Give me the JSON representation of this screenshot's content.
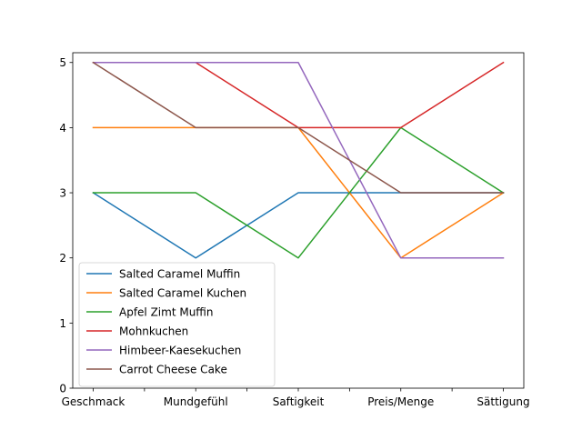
{
  "chart_data": {
    "type": "line",
    "title": "",
    "xlabel": "",
    "ylabel": "",
    "categories": [
      "Geschmack",
      "Mundgefühl",
      "Saftigkeit",
      "Preis/Menge",
      "Sättigung"
    ],
    "ylim": [
      0,
      5.15
    ],
    "yticks": [
      0,
      1,
      2,
      3,
      4,
      5
    ],
    "grid": false,
    "legend_position": "lower-left",
    "series": [
      {
        "name": "Salted Caramel Muffin",
        "color": "#1f77b4",
        "values": [
          3,
          2,
          3,
          3,
          3
        ]
      },
      {
        "name": "Salted Caramel Kuchen",
        "color": "#ff7f0e",
        "values": [
          4,
          4,
          4,
          2,
          3
        ]
      },
      {
        "name": "Apfel Zimt Muffin",
        "color": "#2ca02c",
        "values": [
          3,
          3,
          2,
          4,
          3
        ]
      },
      {
        "name": "Mohnkuchen",
        "color": "#d62728",
        "values": [
          5,
          5,
          4,
          4,
          5
        ]
      },
      {
        "name": "Himbeer-Kaesekuchen",
        "color": "#9467bd",
        "values": [
          5,
          5,
          5,
          2,
          2
        ]
      },
      {
        "name": "Carrot Cheese Cake",
        "color": "#8c564b",
        "values": [
          5,
          4,
          4,
          3,
          3
        ]
      }
    ]
  }
}
